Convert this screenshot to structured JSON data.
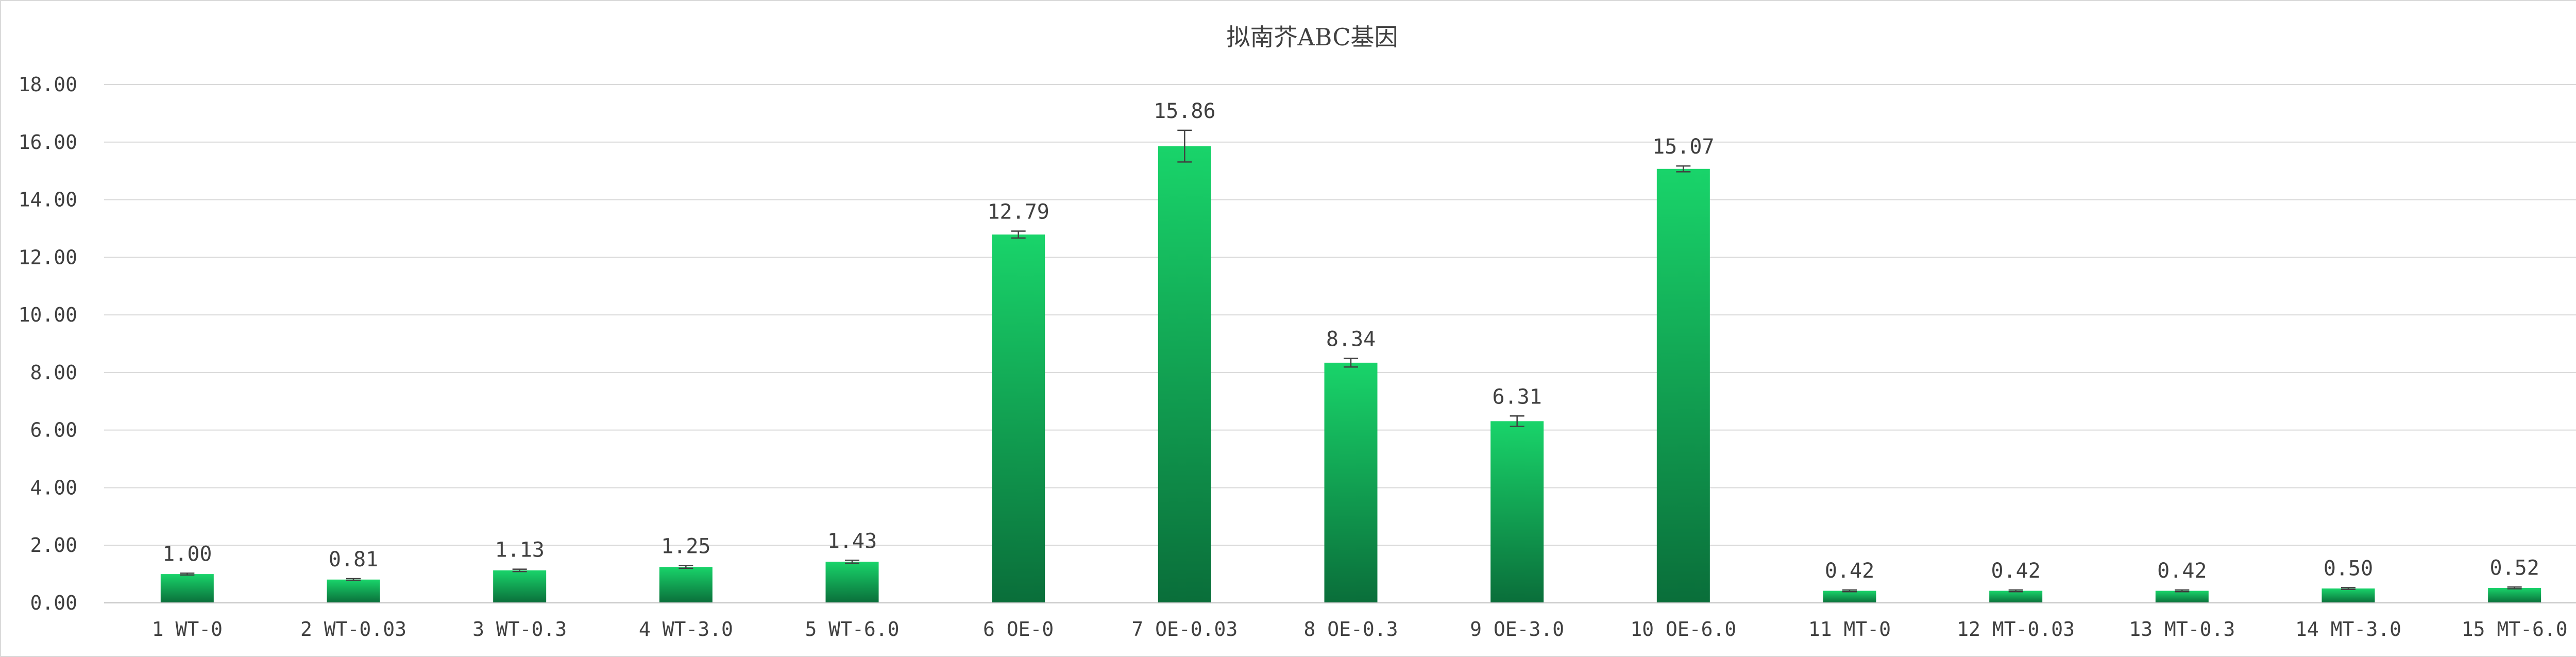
{
  "chart_data": {
    "type": "bar",
    "title": "拟南芥ABC基因",
    "xlabel": "",
    "ylabel": "",
    "ylim": [
      0,
      18
    ],
    "yticks": [
      0,
      2,
      4,
      6,
      8,
      10,
      12,
      14,
      16,
      18
    ],
    "ytick_labels": [
      "0.00",
      "2.00",
      "4.00",
      "6.00",
      "8.00",
      "10.00",
      "12.00",
      "14.00",
      "16.00",
      "18.00"
    ],
    "grid": true,
    "legend": "none",
    "categories": [
      "1 WT-0",
      "2 WT-0.03",
      "3 WT-0.3",
      "4 WT-3.0",
      "5 WT-6.0",
      "6 OE-0",
      "7 OE-0.03",
      "8 OE-0.3",
      "9 OE-3.0",
      "10 OE-6.0",
      "11 MT-0",
      "12 MT-0.03",
      "13 MT-0.3",
      "14 MT-3.0",
      "15 MT-6.0"
    ],
    "values": [
      1.0,
      0.81,
      1.13,
      1.25,
      1.43,
      12.79,
      15.86,
      8.34,
      6.31,
      15.07,
      0.42,
      0.42,
      0.42,
      0.5,
      0.52
    ],
    "value_labels": [
      "1.00",
      "0.81",
      "1.13",
      "1.25",
      "1.43",
      "12.79",
      "15.86",
      "8.34",
      "6.31",
      "15.07",
      "0.42",
      "0.42",
      "0.42",
      "0.50",
      "0.52"
    ],
    "errors": [
      0.03,
      0.03,
      0.04,
      0.05,
      0.05,
      0.12,
      0.55,
      0.15,
      0.18,
      0.1,
      0.03,
      0.03,
      0.03,
      0.03,
      0.03
    ],
    "colors": {
      "bar_top": "#19d46a",
      "bar_bottom": "#0a6e3a",
      "gridline": "#d9d9d9",
      "axis": "#bfbfbf",
      "text": "#404040",
      "error_bar": "#404040"
    }
  }
}
